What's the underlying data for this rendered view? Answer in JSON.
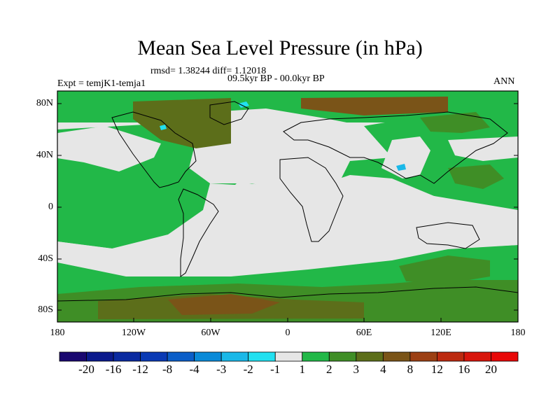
{
  "title": "Mean Sea Level Pressure (in hPa)",
  "stats": "rmsd= 1.38244 diff= 1.12018",
  "period": "09.5kyr BP - 00.0kyr BP",
  "experiment": "Expt = temjK1-temja1",
  "season": "ANN",
  "lat_ticks": [
    "80N",
    "40N",
    "0",
    "40S",
    "80S"
  ],
  "lon_ticks": [
    "180",
    "120W",
    "60W",
    "0",
    "60E",
    "120E",
    "180"
  ],
  "colorbar": {
    "labels": [
      "-20",
      "-16",
      "-12",
      "-8",
      "-4",
      "-3",
      "-2",
      "-1",
      "1",
      "2",
      "3",
      "4",
      "8",
      "12",
      "16",
      "20"
    ],
    "colors": [
      "#1a0870",
      "#0b1a8c",
      "#0a2aa0",
      "#0a3ab4",
      "#0b5ec8",
      "#0a8ad8",
      "#1ab8e8",
      "#22e0f0",
      "#e6e6e6",
      "#22b848",
      "#3f8e26",
      "#5c6e1a",
      "#7a5418",
      "#9c4014",
      "#bc2a10",
      "#d8160c",
      "#e80808"
    ]
  },
  "map_colors": {
    "neutral": "#e6e6e6",
    "green": "#22b848",
    "olive": "#3f8e26",
    "darkolive": "#5c6e1a",
    "brown": "#7a5418",
    "cyan": "#22e0f0",
    "lightblue": "#1ab8e8"
  }
}
